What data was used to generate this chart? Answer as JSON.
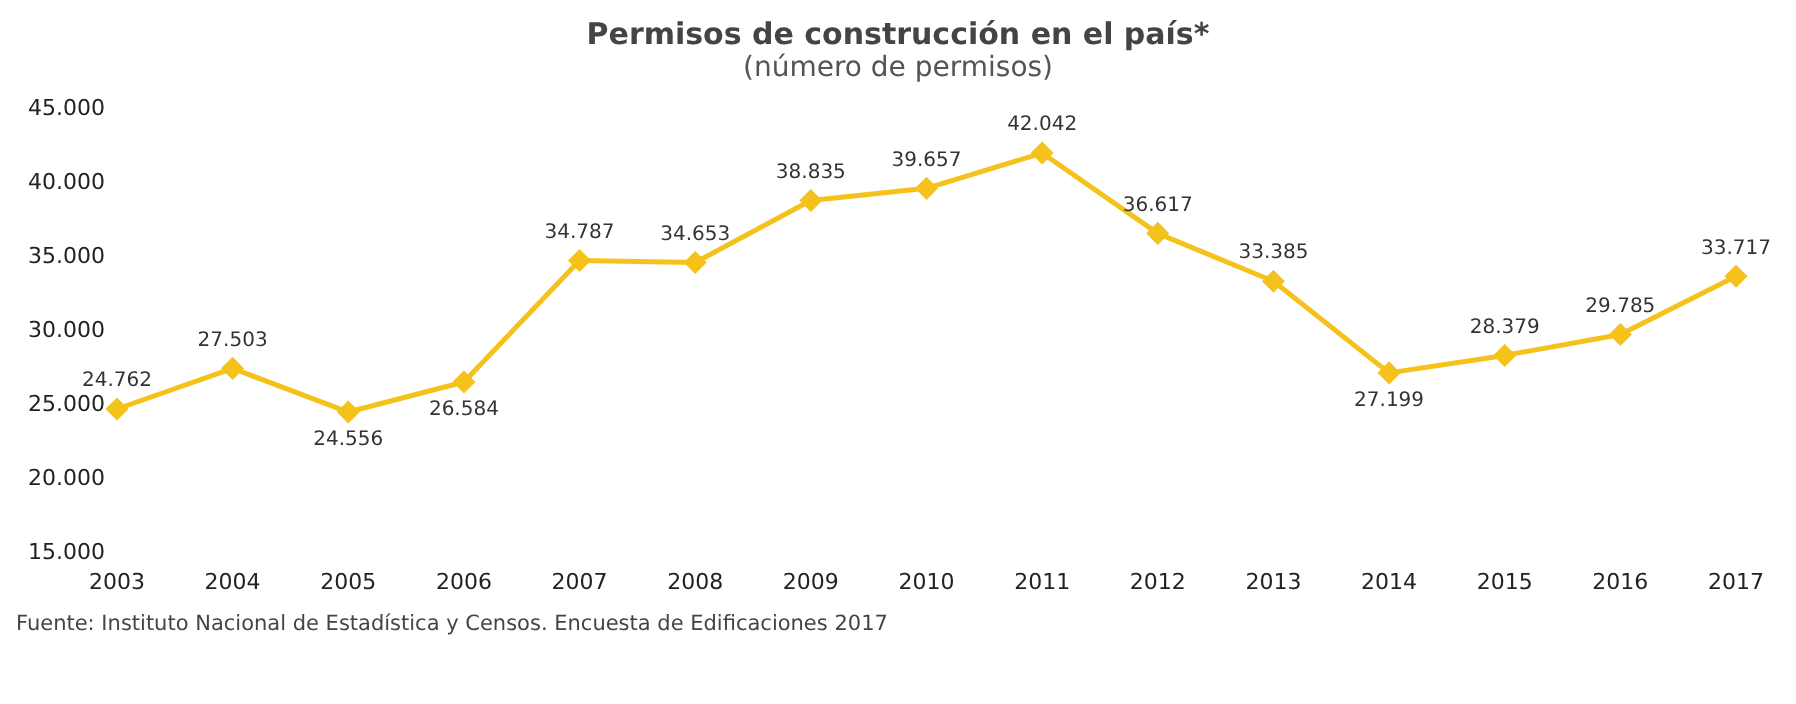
{
  "chart_data": {
    "type": "line",
    "title": "Permisos de construcción en el país*",
    "subtitle": "(número de permisos)",
    "categories": [
      "2003",
      "2004",
      "2005",
      "2006",
      "2007",
      "2008",
      "2009",
      "2010",
      "2011",
      "2012",
      "2013",
      "2014",
      "2015",
      "2016",
      "2017"
    ],
    "series": [
      {
        "color": "#f5c21b",
        "values": [
          24762,
          27503,
          24556,
          26584,
          34787,
          34653,
          38835,
          39657,
          42042,
          36617,
          33385,
          27199,
          28379,
          29785,
          33717
        ],
        "value_labels": [
          "24.762",
          "27.503",
          "24.556",
          "26.584",
          "34.787",
          "34.653",
          "38.835",
          "39.657",
          "42.042",
          "36.617",
          "33.385",
          "27.199",
          "28.379",
          "29.785",
          "33.717"
        ]
      }
    ],
    "ylim": [
      15000,
      45000
    ],
    "yticks": [
      {
        "value": 15000,
        "label": "15.000"
      },
      {
        "value": 20000,
        "label": "20.000"
      },
      {
        "value": 25000,
        "label": "25.000"
      },
      {
        "value": 30000,
        "label": "30.000"
      },
      {
        "value": 35000,
        "label": "35.000"
      },
      {
        "value": 40000,
        "label": "40.000"
      },
      {
        "value": 45000,
        "label": "45.000"
      }
    ],
    "marker": "diamond",
    "line_style": "solid",
    "grid": false,
    "legend": false,
    "annotations": [
      "Fuente: Instituto Nacional de Estadística y Censos. Encuesta de Edificaciones 2017"
    ]
  }
}
